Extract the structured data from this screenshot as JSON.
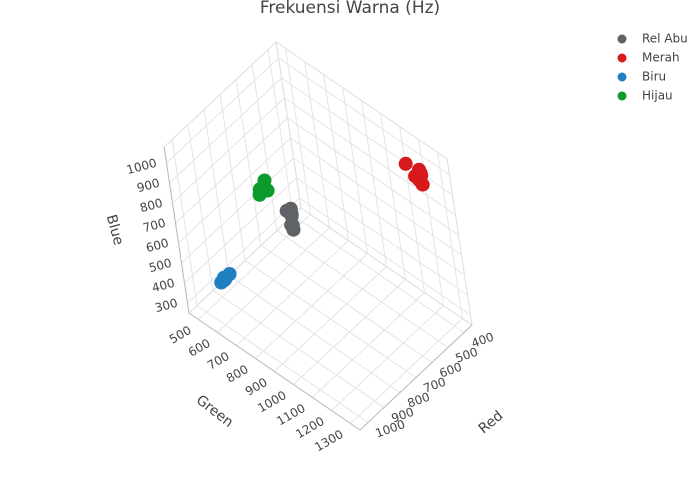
{
  "chart_data": {
    "type": "scatter3d",
    "title": "Frekuensi Warna (Hz)",
    "xlabel": "Red",
    "ylabel": "Green",
    "zlabel": "Blue",
    "xlim": [
      350,
      1050
    ],
    "ylim": [
      450,
      1350
    ],
    "zlim": [
      250,
      1080
    ],
    "xticks": [
      400,
      500,
      600,
      700,
      800,
      900,
      1000
    ],
    "yticks": [
      500,
      600,
      700,
      800,
      900,
      1000,
      1100,
      1200,
      1300
    ],
    "zticks": [
      300,
      400,
      500,
      600,
      700,
      800,
      900,
      1000
    ],
    "grid": true,
    "legend": "top-right",
    "series": [
      {
        "name": "Rel Abu",
        "color": "#5f6368",
        "x": [
          780,
          800,
          820,
          790,
          810,
          830,
          800,
          815,
          795,
          825
        ],
        "y": [
          850,
          870,
          890,
          860,
          880,
          900,
          845,
          875,
          865,
          895
        ],
        "z": [
          800,
          820,
          780,
          840,
          860,
          800,
          830,
          790,
          850,
          810
        ]
      },
      {
        "name": "Merah",
        "color": "#d7191c",
        "x": [
          380,
          400,
          420,
          440,
          460,
          390,
          410,
          430,
          450
        ],
        "y": [
          1200,
          1220,
          1250,
          1280,
          1300,
          1190,
          1240,
          1270,
          1210
        ],
        "z": [
          900,
          940,
          980,
          1020,
          1060,
          920,
          1000,
          960,
          1040
        ]
      },
      {
        "name": "Biru",
        "color": "#1f7fc1",
        "x": [
          930,
          940,
          950,
          960,
          970,
          980,
          945,
          965
        ],
        "y": [
          560,
          570,
          580,
          590,
          600,
          620,
          610,
          575
        ],
        "z": [
          400,
          410,
          430,
          450,
          460,
          480,
          470,
          420
        ]
      },
      {
        "name": "Hijau",
        "color": "#0a9a2e",
        "x": [
          830,
          840,
          850,
          860,
          870,
          880,
          845,
          865,
          855
        ],
        "y": [
          740,
          750,
          760,
          780,
          800,
          820,
          790,
          770,
          810
        ],
        "z": [
          880,
          900,
          920,
          940,
          960,
          1000,
          980,
          910,
          950
        ]
      }
    ]
  }
}
